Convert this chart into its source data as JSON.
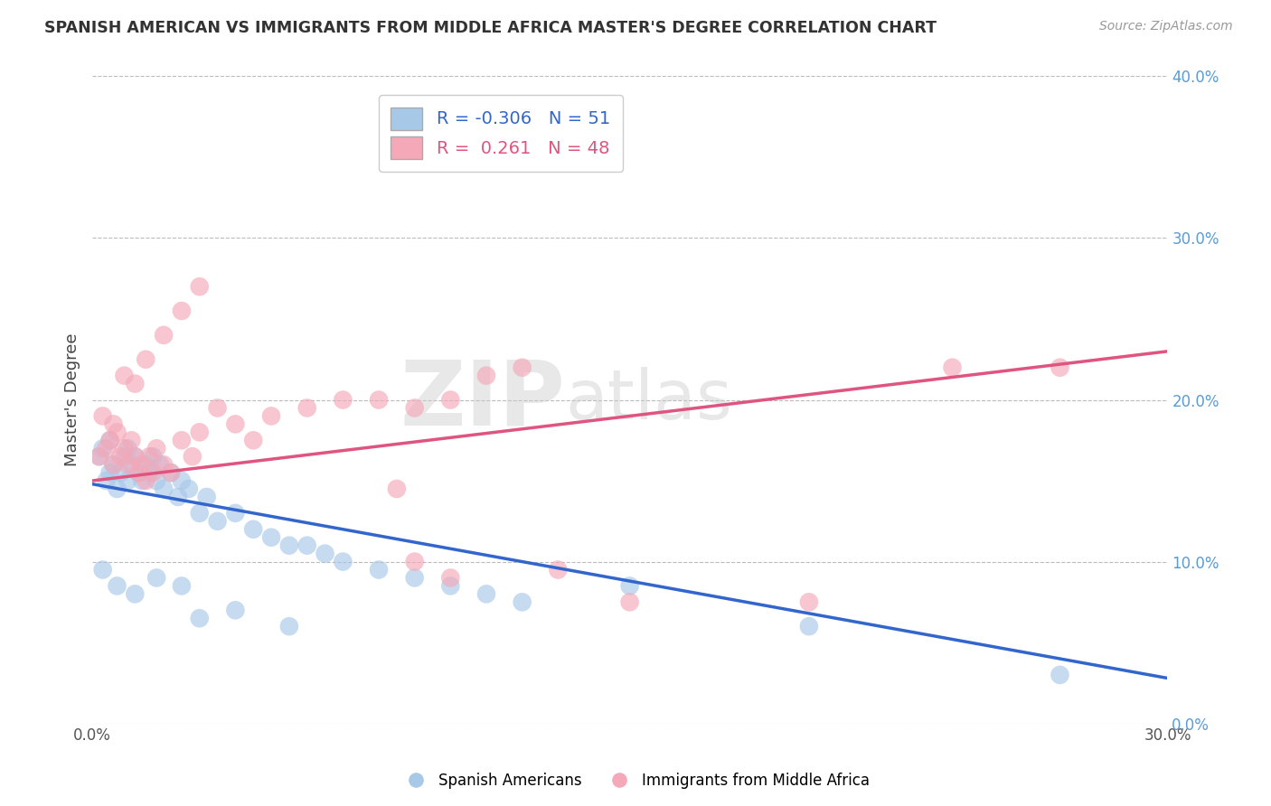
{
  "title": "SPANISH AMERICAN VS IMMIGRANTS FROM MIDDLE AFRICA MASTER'S DEGREE CORRELATION CHART",
  "source": "Source: ZipAtlas.com",
  "ylabel": "Master's Degree",
  "watermark_zip": "ZIP",
  "watermark_atlas": "atlas",
  "xmin": 0.0,
  "xmax": 0.3,
  "ymin": 0.0,
  "ymax": 0.4,
  "xticks": [
    0.0,
    0.05,
    0.1,
    0.15,
    0.2,
    0.25,
    0.3
  ],
  "yticks": [
    0.0,
    0.1,
    0.2,
    0.3,
    0.4
  ],
  "blue_R": -0.306,
  "blue_N": 51,
  "pink_R": 0.261,
  "pink_N": 48,
  "blue_color": "#a8c8e8",
  "pink_color": "#f4a8b8",
  "blue_line_color": "#3366cc",
  "pink_line_color": "#e05580",
  "legend_label_blue": "Spanish Americans",
  "legend_label_pink": "Immigrants from Middle Africa",
  "blue_scatter_x": [
    0.002,
    0.003,
    0.004,
    0.005,
    0.005,
    0.006,
    0.007,
    0.008,
    0.009,
    0.01,
    0.01,
    0.011,
    0.012,
    0.013,
    0.014,
    0.015,
    0.016,
    0.017,
    0.018,
    0.019,
    0.02,
    0.022,
    0.024,
    0.025,
    0.027,
    0.03,
    0.032,
    0.035,
    0.04,
    0.045,
    0.05,
    0.055,
    0.06,
    0.065,
    0.07,
    0.08,
    0.09,
    0.1,
    0.11,
    0.12,
    0.003,
    0.007,
    0.012,
    0.018,
    0.025,
    0.03,
    0.04,
    0.055,
    0.15,
    0.2,
    0.27
  ],
  "blue_scatter_y": [
    0.165,
    0.17,
    0.15,
    0.155,
    0.175,
    0.16,
    0.145,
    0.155,
    0.165,
    0.15,
    0.17,
    0.16,
    0.165,
    0.155,
    0.15,
    0.16,
    0.155,
    0.165,
    0.15,
    0.16,
    0.145,
    0.155,
    0.14,
    0.15,
    0.145,
    0.13,
    0.14,
    0.125,
    0.13,
    0.12,
    0.115,
    0.11,
    0.11,
    0.105,
    0.1,
    0.095,
    0.09,
    0.085,
    0.08,
    0.075,
    0.095,
    0.085,
    0.08,
    0.09,
    0.085,
    0.065,
    0.07,
    0.06,
    0.085,
    0.06,
    0.03
  ],
  "pink_scatter_x": [
    0.002,
    0.004,
    0.005,
    0.006,
    0.007,
    0.008,
    0.009,
    0.01,
    0.011,
    0.012,
    0.013,
    0.014,
    0.015,
    0.016,
    0.017,
    0.018,
    0.02,
    0.022,
    0.025,
    0.028,
    0.03,
    0.035,
    0.04,
    0.045,
    0.05,
    0.06,
    0.07,
    0.08,
    0.09,
    0.1,
    0.003,
    0.006,
    0.009,
    0.012,
    0.015,
    0.02,
    0.025,
    0.03,
    0.11,
    0.12,
    0.09,
    0.1,
    0.15,
    0.2,
    0.24,
    0.27,
    0.085,
    0.13
  ],
  "pink_scatter_y": [
    0.165,
    0.17,
    0.175,
    0.16,
    0.18,
    0.165,
    0.17,
    0.16,
    0.175,
    0.165,
    0.155,
    0.16,
    0.15,
    0.165,
    0.155,
    0.17,
    0.16,
    0.155,
    0.175,
    0.165,
    0.18,
    0.195,
    0.185,
    0.175,
    0.19,
    0.195,
    0.2,
    0.2,
    0.195,
    0.2,
    0.19,
    0.185,
    0.215,
    0.21,
    0.225,
    0.24,
    0.255,
    0.27,
    0.215,
    0.22,
    0.1,
    0.09,
    0.075,
    0.075,
    0.22,
    0.22,
    0.145,
    0.095
  ],
  "blue_line_x0": 0.0,
  "blue_line_x1": 0.3,
  "blue_line_y0": 0.148,
  "blue_line_y1": 0.028,
  "pink_line_x0": 0.0,
  "pink_line_x1": 0.3,
  "pink_line_y0": 0.15,
  "pink_line_y1": 0.23
}
